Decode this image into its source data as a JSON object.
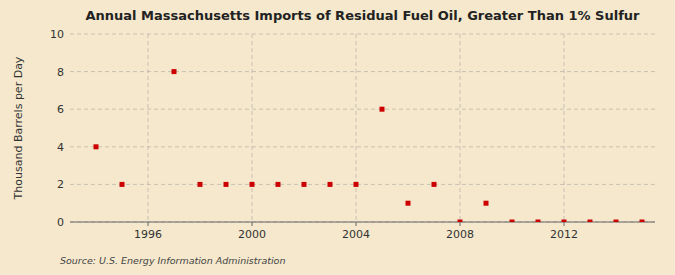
{
  "chart_data": {
    "type": "scatter",
    "title": "Annual Massachusetts Imports of Residual Fuel Oil, Greater Than 1% Sulfur",
    "ylabel": "Thousand Barrels per Day",
    "annotations": [
      "Source: U.S. Energy Information Administration"
    ],
    "x": [
      1994,
      1995,
      1997,
      1998,
      1999,
      2000,
      2001,
      2002,
      2003,
      2004,
      2005,
      2006,
      2007,
      2008,
      2009,
      2010,
      2011,
      2012,
      2013,
      2014,
      2015
    ],
    "values": [
      4,
      2,
      8,
      2,
      2,
      2,
      2,
      2,
      2,
      2,
      6,
      1,
      2,
      0,
      1,
      0,
      0,
      0,
      0,
      0,
      0
    ],
    "color": "#cc0000",
    "marker": "square",
    "xlim": [
      1993,
      2015.5
    ],
    "xticks": [
      1996,
      2000,
      2004,
      2008,
      2012
    ],
    "ylim": [
      0,
      10
    ],
    "yticks": [
      0,
      2,
      4,
      6,
      8,
      10
    ],
    "grid": true
  }
}
